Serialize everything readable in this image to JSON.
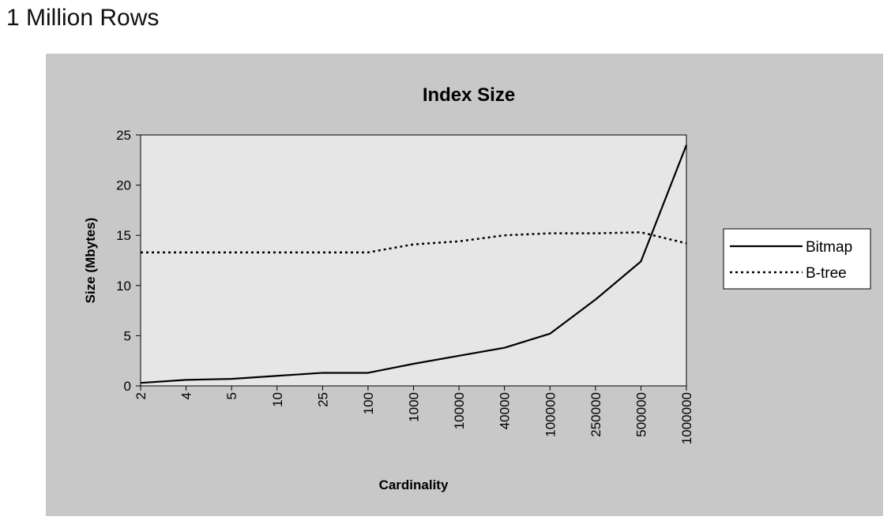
{
  "page": {
    "heading": "1 Million Rows"
  },
  "colors": {
    "panel_bg": "#c8c8c8",
    "plot_bg": "#e6e6e6",
    "ink": "#000000"
  },
  "chart_data": {
    "type": "line",
    "title": "Index Size",
    "xlabel": "Cardinality",
    "ylabel": "Size (Mbytes)",
    "ylim": [
      0,
      25
    ],
    "yticks": [
      0,
      5,
      10,
      15,
      20,
      25
    ],
    "categories": [
      "2",
      "4",
      "5",
      "10",
      "25",
      "100",
      "1000",
      "10000",
      "40000",
      "100000",
      "250000",
      "500000",
      "1000000"
    ],
    "series": [
      {
        "name": "Bitmap",
        "style": "solid",
        "values": [
          0.3,
          0.6,
          0.7,
          1.0,
          1.3,
          1.3,
          2.2,
          3.0,
          3.8,
          5.2,
          8.6,
          12.4,
          24.0
        ]
      },
      {
        "name": "B-tree",
        "style": "dotted",
        "values": [
          13.3,
          13.3,
          13.3,
          13.3,
          13.3,
          13.3,
          14.1,
          14.4,
          15.0,
          15.2,
          15.2,
          15.3,
          14.2
        ]
      }
    ],
    "legend_position": "right",
    "grid": false
  }
}
